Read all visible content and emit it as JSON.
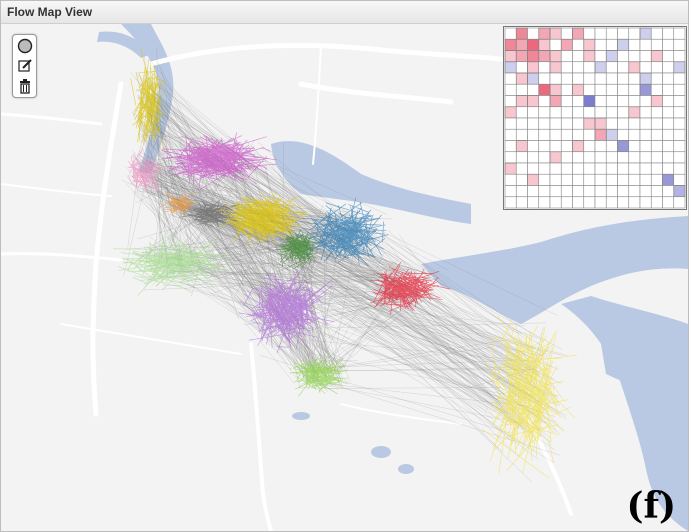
{
  "window": {
    "title": "Flow Map View"
  },
  "toolbar": {
    "tools": [
      {
        "name": "circle-select-tool",
        "icon": "circle-select-icon"
      },
      {
        "name": "edit-tool",
        "icon": "pencil-icon"
      },
      {
        "name": "delete-tool",
        "icon": "trash-icon"
      }
    ]
  },
  "panel_label": "(f)",
  "colors": {
    "background": "#f3f3f4",
    "water": "#b9c9e3",
    "roads": "#ffffff",
    "flow_gray": "#7a7a7a",
    "clusters": [
      "#d9c300",
      "#cc55c8",
      "#f090c0",
      "#f29a3c",
      "#6e6e6e",
      "#e0c700",
      "#2f7db6",
      "#3e8a2e",
      "#a4dd8c",
      "#b06fd8",
      "#e8283b",
      "#8fd64a",
      "#f0e24a"
    ],
    "matrix_red": "#e8516a",
    "matrix_blue": "#6a6ac8"
  },
  "matrix": {
    "size": 16,
    "cells": [
      [
        0,
        3,
        0,
        2,
        1,
        0,
        2,
        0,
        0,
        0,
        0,
        0,
        -1,
        0,
        0,
        0
      ],
      [
        3,
        2,
        4,
        1,
        0,
        2,
        0,
        1,
        0,
        0,
        -1,
        0,
        0,
        0,
        0,
        0
      ],
      [
        1,
        2,
        3,
        2,
        1,
        0,
        0,
        1,
        0,
        -1,
        0,
        0,
        0,
        1,
        0,
        0
      ],
      [
        -1,
        0,
        1,
        0,
        1,
        0,
        0,
        0,
        -1,
        0,
        0,
        1,
        0,
        0,
        0,
        -1
      ],
      [
        0,
        1,
        -1,
        0,
        0,
        0,
        0,
        0,
        0,
        0,
        0,
        0,
        -1,
        0,
        0,
        0
      ],
      [
        0,
        0,
        0,
        4,
        1,
        0,
        1,
        0,
        0,
        0,
        0,
        0,
        -3,
        0,
        0,
        0
      ],
      [
        0,
        1,
        1,
        0,
        2,
        0,
        0,
        -4,
        0,
        0,
        0,
        0,
        0,
        1,
        0,
        0
      ],
      [
        1,
        0,
        0,
        0,
        0,
        0,
        0,
        0,
        0,
        0,
        0,
        1,
        0,
        0,
        0,
        0
      ],
      [
        0,
        0,
        0,
        0,
        0,
        0,
        0,
        1,
        1,
        0,
        0,
        0,
        0,
        0,
        0,
        0
      ],
      [
        0,
        0,
        0,
        0,
        0,
        0,
        0,
        0,
        2,
        -1,
        0,
        0,
        0,
        0,
        0,
        0
      ],
      [
        0,
        1,
        0,
        0,
        0,
        0,
        1,
        0,
        0,
        0,
        -3,
        0,
        0,
        0,
        0,
        0
      ],
      [
        0,
        0,
        0,
        0,
        1,
        0,
        0,
        0,
        0,
        0,
        0,
        0,
        0,
        0,
        0,
        0
      ],
      [
        1,
        0,
        0,
        0,
        0,
        0,
        0,
        0,
        0,
        0,
        0,
        0,
        0,
        0,
        0,
        0
      ],
      [
        0,
        0,
        1,
        0,
        0,
        0,
        0,
        0,
        0,
        0,
        0,
        0,
        0,
        0,
        -3,
        0
      ],
      [
        0,
        0,
        0,
        0,
        0,
        0,
        0,
        0,
        0,
        0,
        0,
        0,
        0,
        0,
        0,
        -2
      ],
      [
        0,
        0,
        0,
        0,
        0,
        0,
        0,
        0,
        0,
        0,
        0,
        0,
        0,
        0,
        0,
        0
      ]
    ]
  }
}
